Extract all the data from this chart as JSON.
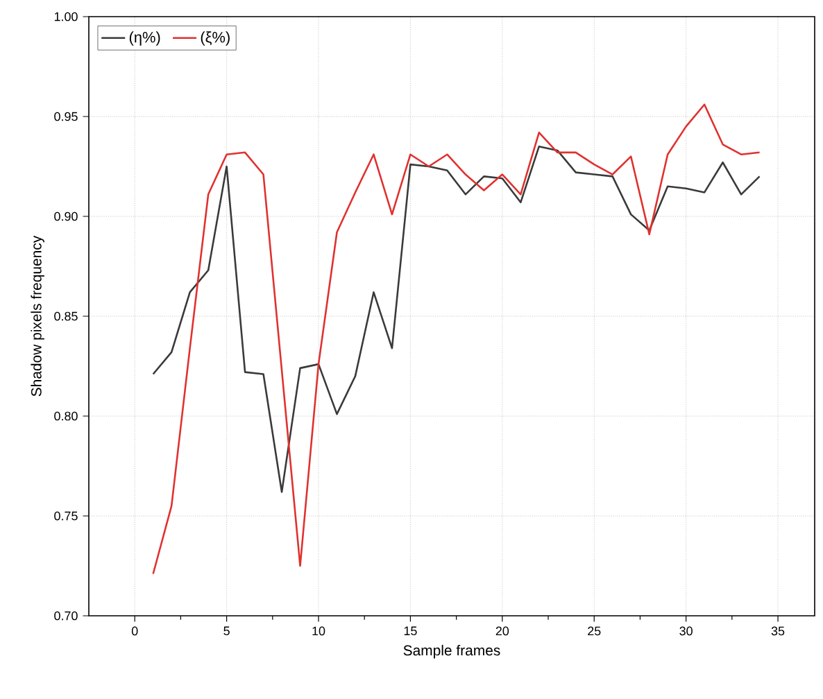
{
  "chart_data": {
    "type": "line",
    "xlabel": "Sample frames",
    "ylabel": "Shadow pixels frequency",
    "xlim": [
      -2.5,
      37
    ],
    "ylim": [
      0.7,
      1.0
    ],
    "xticks": [
      0,
      5,
      10,
      15,
      20,
      25,
      30,
      35
    ],
    "yticks": [
      {
        "value": 0.7,
        "label": "0.70"
      },
      {
        "value": 0.75,
        "label": "0.75"
      },
      {
        "value": 0.8,
        "label": "0.80"
      },
      {
        "value": 0.85,
        "label": "0.85"
      },
      {
        "value": 0.9,
        "label": "0.90"
      },
      {
        "value": 0.95,
        "label": "0.95"
      },
      {
        "value": 1.0,
        "label": "1.00"
      }
    ],
    "grid": true,
    "legend": "top left",
    "marker": "none",
    "line_style": "solid",
    "x": [
      1,
      2,
      3,
      4,
      5,
      6,
      7,
      8,
      9,
      10,
      11,
      12,
      13,
      14,
      15,
      16,
      17,
      18,
      19,
      20,
      21,
      22,
      23,
      24,
      25,
      26,
      27,
      28,
      29,
      30,
      31,
      32,
      33,
      34
    ],
    "series": [
      {
        "name": "(η%)",
        "color": "#3a3a3a",
        "values": [
          0.821,
          0.832,
          0.862,
          0.873,
          0.925,
          0.822,
          0.821,
          0.762,
          0.824,
          0.826,
          0.801,
          0.82,
          0.862,
          0.834,
          0.926,
          0.925,
          0.923,
          0.911,
          0.92,
          0.919,
          0.907,
          0.935,
          0.933,
          0.922,
          0.921,
          0.92,
          0.901,
          0.893,
          0.915,
          0.914,
          0.912,
          0.927,
          0.911,
          0.92
        ]
      },
      {
        "name": "(ξ%)",
        "color": "#e0312f",
        "values": [
          0.721,
          0.755,
          0.834,
          0.911,
          0.931,
          0.932,
          0.921,
          0.823,
          0.725,
          0.826,
          0.892,
          0.912,
          0.931,
          0.901,
          0.931,
          0.925,
          0.931,
          0.921,
          0.913,
          0.921,
          0.911,
          0.942,
          0.932,
          0.932,
          0.926,
          0.921,
          0.93,
          0.891,
          0.931,
          0.945,
          0.956,
          0.936,
          0.931,
          0.932
        ]
      }
    ]
  }
}
